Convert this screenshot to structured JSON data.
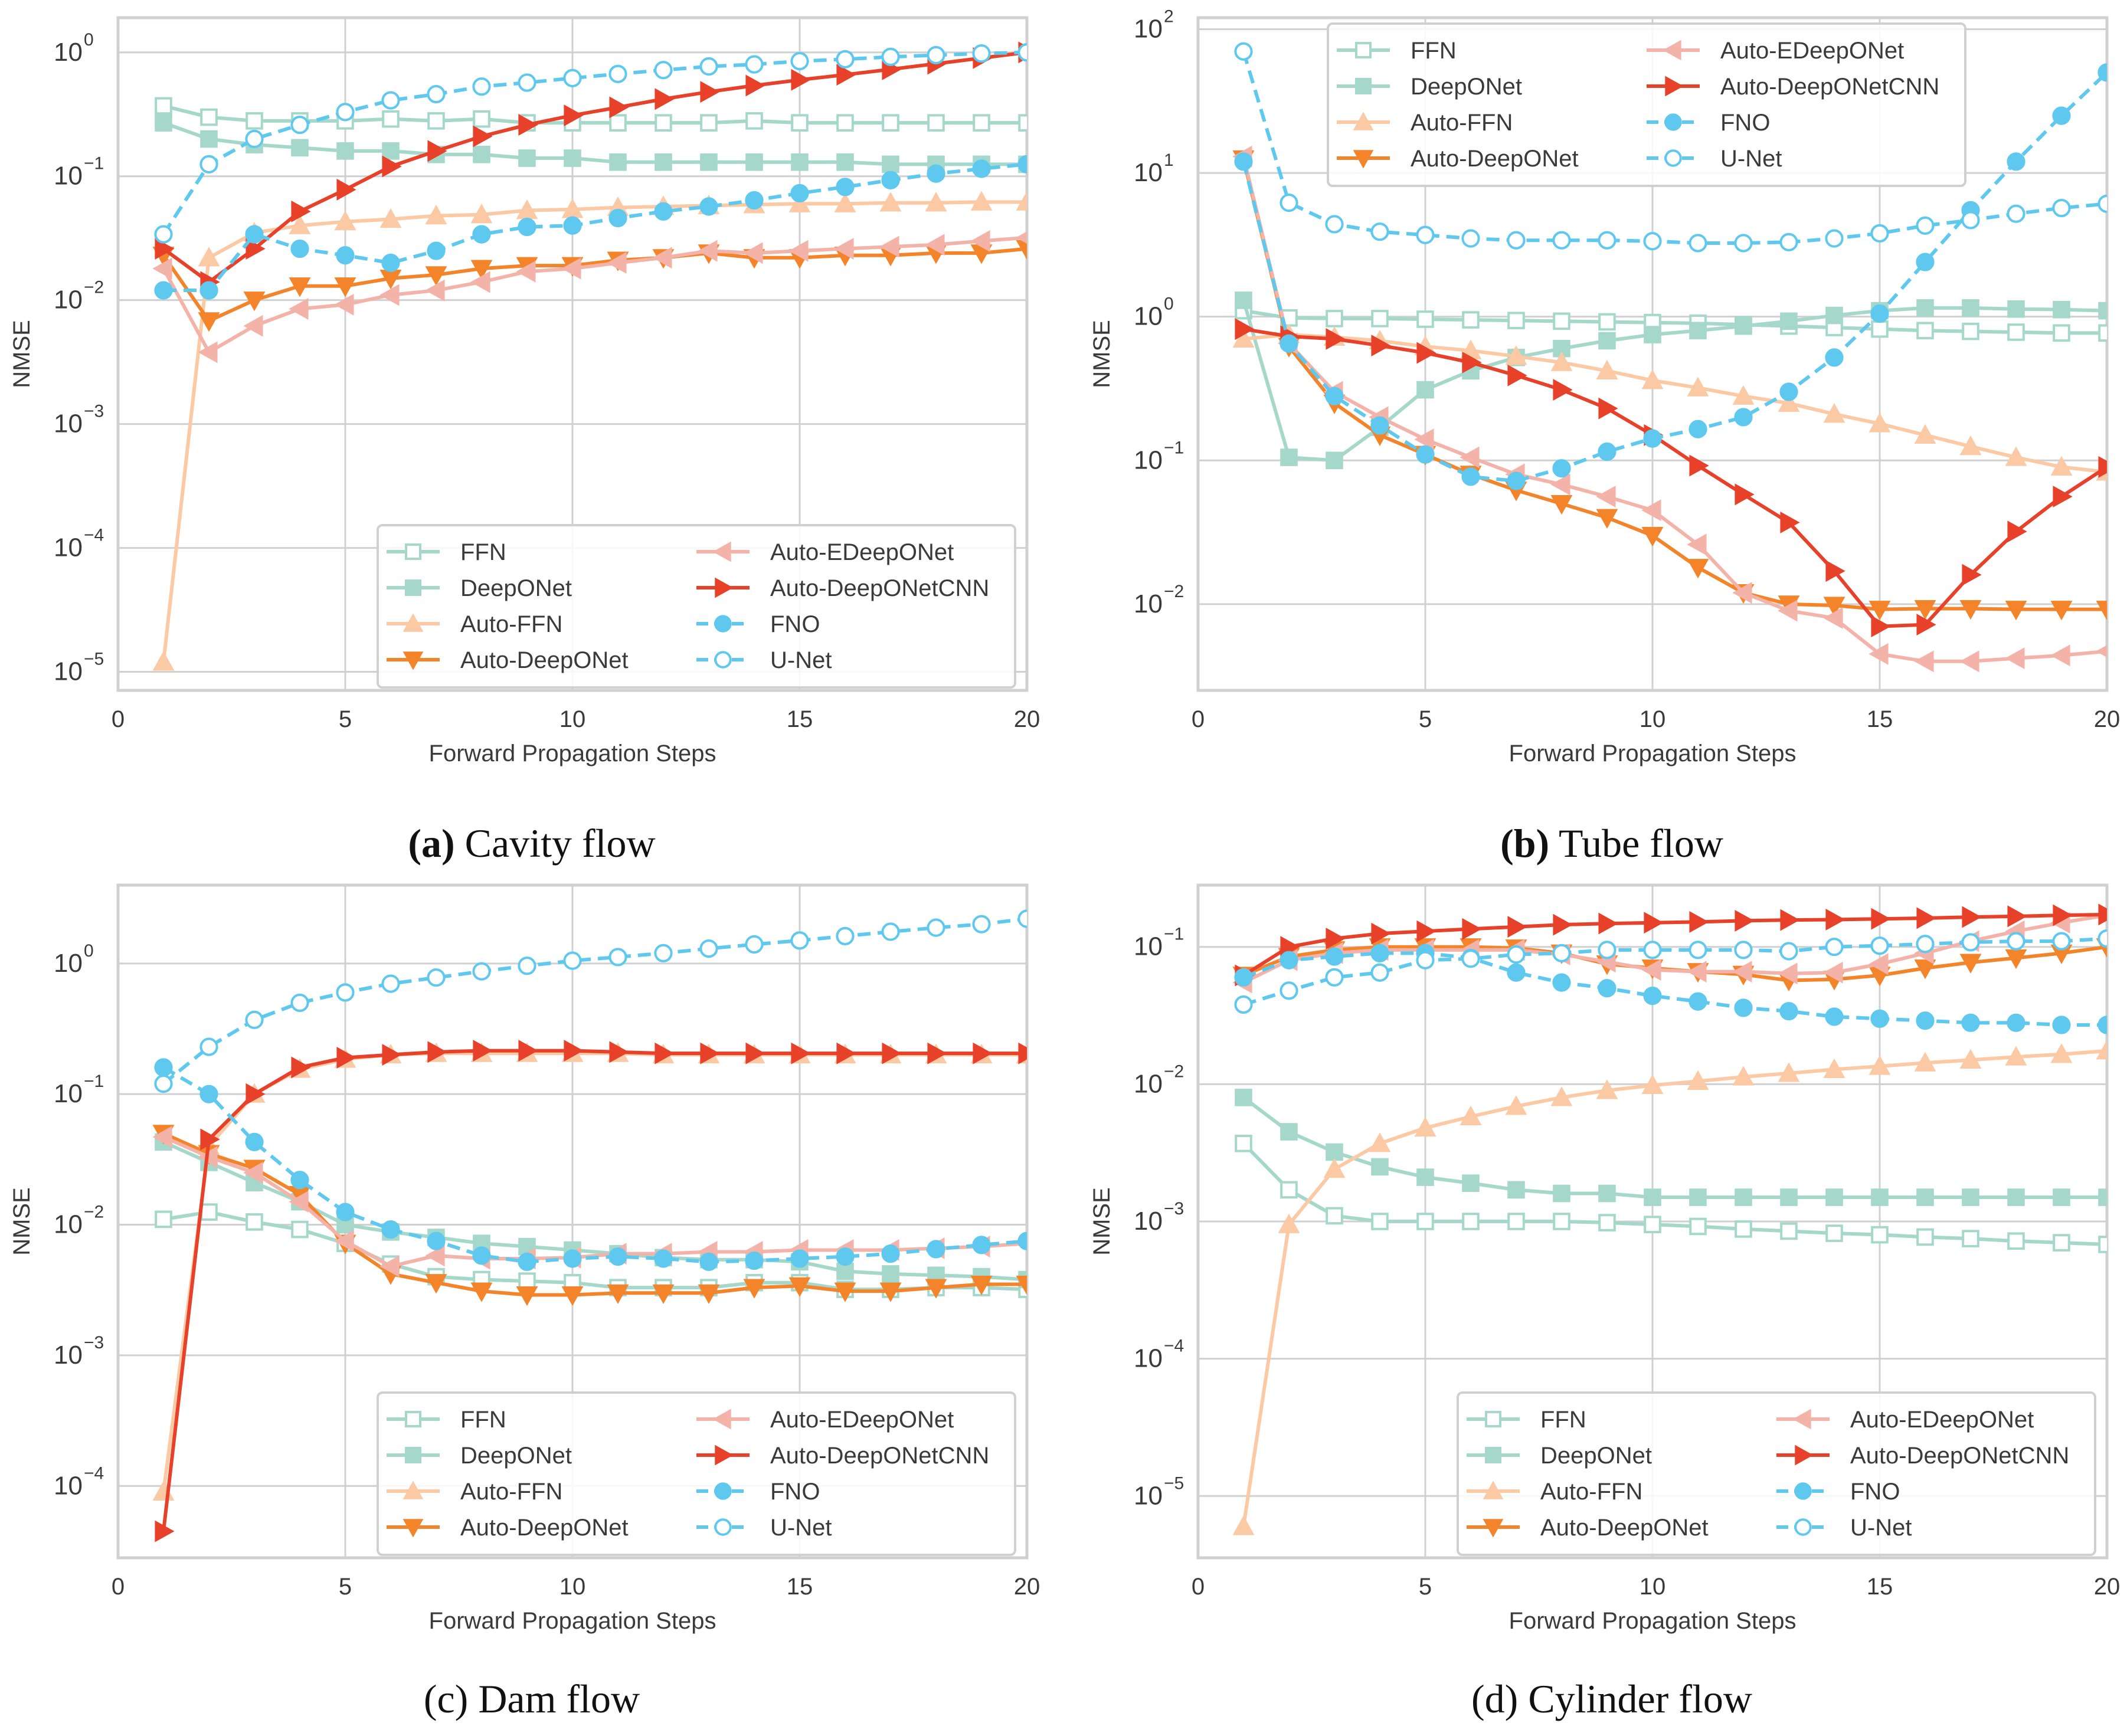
{
  "series_styles": [
    {
      "name": "FFN",
      "color": "#a5d8cb",
      "marker": "square-open",
      "dash": false
    },
    {
      "name": "DeepONet",
      "color": "#a5d8cb",
      "marker": "square",
      "dash": false
    },
    {
      "name": "Auto-FFN",
      "color": "#fcc9a5",
      "marker": "triangle-up",
      "dash": false
    },
    {
      "name": "Auto-DeepONet",
      "color": "#f4842a",
      "marker": "triangle-down",
      "dash": false
    },
    {
      "name": "Auto-EDeepONet",
      "color": "#f4b3a8",
      "marker": "triangle-left",
      "dash": false
    },
    {
      "name": "Auto-DeepONetCNN",
      "color": "#e8412a",
      "marker": "triangle-right",
      "dash": false
    },
    {
      "name": "FNO",
      "color": "#5ec8ee",
      "marker": "circle",
      "dash": true
    },
    {
      "name": "U-Net",
      "color": "#5ec8ee",
      "marker": "circle-open",
      "dash": true
    }
  ],
  "chart_data": [
    {
      "type": "line",
      "id": "a",
      "caption_label": "(a)",
      "caption_text": "Cavity flow",
      "title": "",
      "xlabel": "Forward Propagation Steps",
      "ylabel": "NMSE",
      "yscale": "log",
      "xlim": [
        0,
        20
      ],
      "ylim_exp": [
        -5.15,
        0.28
      ],
      "xticks": [
        0,
        5,
        10,
        15,
        20
      ],
      "yticks_exp": [
        -5,
        -4,
        -3,
        -2,
        -1,
        0
      ],
      "legend": "lower-right",
      "grid": true,
      "x": [
        1,
        2,
        3,
        4,
        5,
        6,
        7,
        8,
        9,
        10,
        11,
        12,
        13,
        14,
        15,
        16,
        17,
        18,
        19,
        20
      ],
      "series": [
        {
          "name": "FFN",
          "values": [
            0.37,
            0.3,
            0.28,
            0.28,
            0.28,
            0.29,
            0.28,
            0.29,
            0.27,
            0.27,
            0.27,
            0.27,
            0.27,
            0.28,
            0.27,
            0.27,
            0.27,
            0.27,
            0.27,
            0.27
          ]
        },
        {
          "name": "DeepONet",
          "values": [
            0.27,
            0.2,
            0.18,
            0.17,
            0.16,
            0.16,
            0.15,
            0.15,
            0.14,
            0.14,
            0.13,
            0.13,
            0.13,
            0.13,
            0.13,
            0.13,
            0.125,
            0.125,
            0.125,
            0.125
          ]
        },
        {
          "name": "Auto-FFN",
          "values": [
            1.2e-05,
            0.022,
            0.035,
            0.04,
            0.043,
            0.045,
            0.048,
            0.049,
            0.053,
            0.054,
            0.056,
            0.057,
            0.058,
            0.059,
            0.06,
            0.06,
            0.061,
            0.061,
            0.062,
            0.062
          ]
        },
        {
          "name": "Auto-DeepONet",
          "values": [
            0.023,
            0.0068,
            0.01,
            0.013,
            0.013,
            0.015,
            0.016,
            0.018,
            0.019,
            0.019,
            0.021,
            0.022,
            0.024,
            0.022,
            0.022,
            0.023,
            0.023,
            0.024,
            0.024,
            0.026
          ]
        },
        {
          "name": "Auto-EDeepONet",
          "values": [
            0.018,
            0.0038,
            0.0062,
            0.0085,
            0.0092,
            0.011,
            0.012,
            0.014,
            0.017,
            0.018,
            0.02,
            0.022,
            0.025,
            0.024,
            0.025,
            0.026,
            0.027,
            0.028,
            0.03,
            0.032
          ]
        },
        {
          "name": "Auto-DeepONetCNN",
          "values": [
            0.026,
            0.014,
            0.026,
            0.052,
            0.078,
            0.12,
            0.16,
            0.21,
            0.26,
            0.31,
            0.36,
            0.42,
            0.48,
            0.54,
            0.6,
            0.66,
            0.73,
            0.81,
            0.9,
            1.0
          ]
        },
        {
          "name": "FNO",
          "values": [
            0.012,
            0.012,
            0.034,
            0.026,
            0.023,
            0.02,
            0.025,
            0.034,
            0.039,
            0.04,
            0.046,
            0.052,
            0.057,
            0.064,
            0.073,
            0.082,
            0.093,
            0.105,
            0.115,
            0.125
          ]
        },
        {
          "name": "U-Net",
          "values": [
            0.034,
            0.125,
            0.2,
            0.26,
            0.33,
            0.41,
            0.46,
            0.53,
            0.57,
            0.62,
            0.67,
            0.72,
            0.77,
            0.8,
            0.85,
            0.88,
            0.92,
            0.95,
            0.98,
            1.0
          ]
        }
      ]
    },
    {
      "type": "line",
      "id": "b",
      "caption_label": "(b)",
      "caption_text": "Tube flow",
      "title": "",
      "xlabel": "Forward Propagation Steps",
      "ylabel": "NMSE",
      "yscale": "log",
      "xlim": [
        0,
        20
      ],
      "ylim_exp": [
        -2.6,
        2.08
      ],
      "xticks": [
        0,
        5,
        10,
        15,
        20
      ],
      "yticks_exp": [
        -2,
        -1,
        0,
        1,
        2
      ],
      "legend": "upper-center",
      "grid": true,
      "x": [
        1,
        2,
        3,
        4,
        5,
        6,
        7,
        8,
        9,
        10,
        11,
        12,
        13,
        14,
        15,
        16,
        17,
        18,
        19,
        20
      ],
      "series": [
        {
          "name": "FFN",
          "values": [
            1.1,
            0.98,
            0.97,
            0.97,
            0.96,
            0.95,
            0.94,
            0.93,
            0.92,
            0.91,
            0.9,
            0.88,
            0.86,
            0.84,
            0.82,
            0.8,
            0.79,
            0.78,
            0.77,
            0.77
          ]
        },
        {
          "name": "DeepONet",
          "values": [
            1.3,
            0.105,
            0.1,
            0.17,
            0.31,
            0.42,
            0.52,
            0.6,
            0.68,
            0.75,
            0.8,
            0.86,
            0.93,
            1.02,
            1.1,
            1.15,
            1.15,
            1.13,
            1.12,
            1.1
          ]
        },
        {
          "name": "Auto-FFN",
          "values": [
            0.7,
            0.75,
            0.72,
            0.68,
            0.62,
            0.58,
            0.53,
            0.48,
            0.42,
            0.36,
            0.32,
            0.28,
            0.25,
            0.21,
            0.18,
            0.15,
            0.125,
            0.105,
            0.09,
            0.083
          ]
        },
        {
          "name": "Auto-DeepONet",
          "values": [
            12.5,
            0.62,
            0.25,
            0.15,
            0.11,
            0.08,
            0.062,
            0.05,
            0.04,
            0.03,
            0.018,
            0.012,
            0.01,
            0.0098,
            0.0092,
            0.0093,
            0.0093,
            0.0092,
            0.0092,
            0.0092
          ]
        },
        {
          "name": "Auto-EDeepONet",
          "values": [
            13.0,
            0.65,
            0.3,
            0.2,
            0.14,
            0.105,
            0.08,
            0.068,
            0.056,
            0.045,
            0.026,
            0.012,
            0.009,
            0.008,
            0.0045,
            0.004,
            0.004,
            0.0042,
            0.0044,
            0.0047
          ]
        },
        {
          "name": "Auto-DeepONetCNN",
          "values": [
            0.82,
            0.73,
            0.7,
            0.63,
            0.56,
            0.48,
            0.39,
            0.31,
            0.23,
            0.15,
            0.092,
            0.058,
            0.037,
            0.017,
            0.007,
            0.0072,
            0.016,
            0.032,
            0.056,
            0.09
          ]
        },
        {
          "name": "FNO",
          "values": [
            12.0,
            0.65,
            0.28,
            0.175,
            0.11,
            0.077,
            0.072,
            0.088,
            0.115,
            0.142,
            0.165,
            0.2,
            0.3,
            0.52,
            1.05,
            2.4,
            5.5,
            12.0,
            25.0,
            50.0
          ]
        },
        {
          "name": "U-Net",
          "values": [
            70.0,
            6.2,
            4.4,
            3.9,
            3.7,
            3.5,
            3.4,
            3.4,
            3.4,
            3.35,
            3.25,
            3.25,
            3.3,
            3.5,
            3.8,
            4.3,
            4.7,
            5.2,
            5.7,
            6.1
          ]
        }
      ]
    },
    {
      "type": "line",
      "id": "c",
      "caption_label": "(c)",
      "caption_text": "Dam flow",
      "title": "",
      "xlabel": "Forward Propagation Steps",
      "ylabel": "NMSE",
      "yscale": "log",
      "xlim": [
        0,
        20
      ],
      "ylim_exp": [
        -4.55,
        0.6
      ],
      "xticks": [
        0,
        5,
        10,
        15,
        20
      ],
      "yticks_exp": [
        -4,
        -3,
        -2,
        -1,
        0
      ],
      "legend": "lower-right",
      "grid": true,
      "x": [
        1,
        2,
        3,
        4,
        5,
        6,
        7,
        8,
        9,
        10,
        11,
        12,
        13,
        14,
        15,
        16,
        17,
        18,
        19,
        20
      ],
      "series": [
        {
          "name": "FFN",
          "values": [
            0.011,
            0.0125,
            0.0105,
            0.0092,
            0.0072,
            0.005,
            0.004,
            0.0038,
            0.0037,
            0.0036,
            0.0033,
            0.0033,
            0.0033,
            0.0036,
            0.0036,
            0.0032,
            0.0032,
            0.0033,
            0.0033,
            0.0032
          ]
        },
        {
          "name": "DeepONet",
          "values": [
            0.043,
            0.03,
            0.021,
            0.015,
            0.01,
            0.0088,
            0.008,
            0.0072,
            0.0068,
            0.0064,
            0.006,
            0.0056,
            0.0054,
            0.0054,
            0.0052,
            0.0044,
            0.0042,
            0.0041,
            0.004,
            0.0038
          ]
        },
        {
          "name": "Auto-FFN",
          "values": [
            9e-05,
            0.04,
            0.1,
            0.155,
            0.185,
            0.2,
            0.205,
            0.205,
            0.205,
            0.205,
            0.205,
            0.2,
            0.2,
            0.2,
            0.2,
            0.2,
            0.2,
            0.2,
            0.2,
            0.2
          ]
        },
        {
          "name": "Auto-DeepONet",
          "values": [
            0.05,
            0.035,
            0.027,
            0.017,
            0.0072,
            0.0042,
            0.0036,
            0.0031,
            0.0029,
            0.0029,
            0.003,
            0.003,
            0.003,
            0.0033,
            0.0034,
            0.0031,
            0.0031,
            0.0033,
            0.0035,
            0.0035
          ]
        },
        {
          "name": "Auto-EDeepONet",
          "values": [
            0.047,
            0.033,
            0.025,
            0.015,
            0.0075,
            0.0048,
            0.0058,
            0.0055,
            0.0055,
            0.0056,
            0.006,
            0.006,
            0.0062,
            0.0062,
            0.0064,
            0.0064,
            0.0064,
            0.0066,
            0.0068,
            0.0072
          ]
        },
        {
          "name": "Auto-DeepONetCNN",
          "values": [
            4.5e-05,
            0.045,
            0.1,
            0.16,
            0.19,
            0.2,
            0.21,
            0.215,
            0.215,
            0.215,
            0.21,
            0.205,
            0.205,
            0.205,
            0.205,
            0.205,
            0.205,
            0.205,
            0.205,
            0.205
          ]
        },
        {
          "name": "FNO",
          "values": [
            0.16,
            0.1,
            0.043,
            0.022,
            0.0125,
            0.0092,
            0.0075,
            0.0058,
            0.0052,
            0.0055,
            0.0057,
            0.0055,
            0.0052,
            0.0053,
            0.0055,
            0.0057,
            0.006,
            0.0065,
            0.007,
            0.0075
          ]
        },
        {
          "name": "U-Net",
          "values": [
            0.12,
            0.23,
            0.37,
            0.5,
            0.6,
            0.7,
            0.78,
            0.87,
            0.96,
            1.05,
            1.12,
            1.2,
            1.3,
            1.4,
            1.5,
            1.62,
            1.75,
            1.88,
            2.0,
            2.2
          ]
        }
      ]
    },
    {
      "type": "line",
      "id": "d",
      "caption_label": "(d)",
      "caption_text": "Cylinder flow",
      "title": "",
      "xlabel": "Forward Propagation Steps",
      "ylabel": "NMSE",
      "yscale": "log",
      "xlim": [
        0,
        20
      ],
      "ylim_exp": [
        -5.45,
        -0.55
      ],
      "xticks": [
        0,
        5,
        10,
        15,
        20
      ],
      "yticks_exp": [
        -5,
        -4,
        -3,
        -2,
        -1
      ],
      "legend": "lower-right",
      "grid": true,
      "x": [
        1,
        2,
        3,
        4,
        5,
        6,
        7,
        8,
        9,
        10,
        11,
        12,
        13,
        14,
        15,
        16,
        17,
        18,
        19,
        20
      ],
      "series": [
        {
          "name": "FFN",
          "values": [
            0.0037,
            0.0017,
            0.0011,
            0.001,
            0.001,
            0.001,
            0.001,
            0.001,
            0.00098,
            0.00095,
            0.00092,
            0.00088,
            0.00085,
            0.00082,
            0.0008,
            0.00077,
            0.00075,
            0.00072,
            0.0007,
            0.00068
          ]
        },
        {
          "name": "DeepONet",
          "values": [
            0.008,
            0.0045,
            0.0032,
            0.0025,
            0.0021,
            0.0019,
            0.0017,
            0.0016,
            0.0016,
            0.0015,
            0.0015,
            0.0015,
            0.0015,
            0.0015,
            0.0015,
            0.0015,
            0.0015,
            0.0015,
            0.0015,
            0.0015
          ]
        },
        {
          "name": "Auto-FFN",
          "values": [
            6e-06,
            0.00095,
            0.0024,
            0.0037,
            0.0048,
            0.0058,
            0.0069,
            0.008,
            0.009,
            0.0098,
            0.0105,
            0.0113,
            0.012,
            0.0128,
            0.0135,
            0.0143,
            0.015,
            0.0158,
            0.0165,
            0.0175
          ]
        },
        {
          "name": "Auto-DeepONet",
          "values": [
            0.062,
            0.085,
            0.095,
            0.1,
            0.1,
            0.1,
            0.098,
            0.09,
            0.075,
            0.07,
            0.066,
            0.063,
            0.057,
            0.058,
            0.062,
            0.07,
            0.077,
            0.083,
            0.09,
            0.1
          ]
        },
        {
          "name": "Auto-EDeepONet",
          "values": [
            0.055,
            0.08,
            0.09,
            0.095,
            0.095,
            0.095,
            0.095,
            0.088,
            0.078,
            0.068,
            0.066,
            0.066,
            0.064,
            0.065,
            0.075,
            0.09,
            0.11,
            0.13,
            0.15,
            0.17
          ]
        },
        {
          "name": "Auto-DeepONetCNN",
          "values": [
            0.062,
            0.1,
            0.115,
            0.125,
            0.13,
            0.135,
            0.14,
            0.145,
            0.148,
            0.15,
            0.152,
            0.155,
            0.157,
            0.158,
            0.16,
            0.162,
            0.165,
            0.167,
            0.17,
            0.172
          ]
        },
        {
          "name": "FNO",
          "values": [
            0.06,
            0.08,
            0.085,
            0.09,
            0.09,
            0.083,
            0.065,
            0.055,
            0.05,
            0.044,
            0.04,
            0.036,
            0.034,
            0.031,
            0.03,
            0.029,
            0.028,
            0.028,
            0.027,
            0.027
          ]
        },
        {
          "name": "U-Net",
          "values": [
            0.038,
            0.048,
            0.06,
            0.065,
            0.08,
            0.082,
            0.088,
            0.09,
            0.095,
            0.095,
            0.095,
            0.095,
            0.093,
            0.1,
            0.102,
            0.105,
            0.108,
            0.11,
            0.11,
            0.115
          ]
        }
      ]
    }
  ]
}
